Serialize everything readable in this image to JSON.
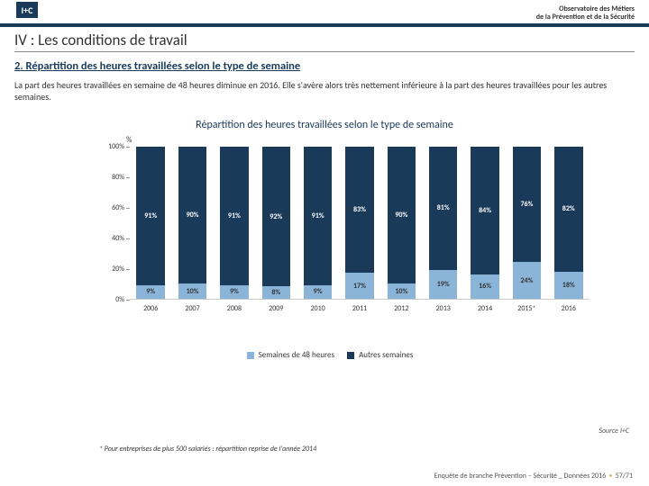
{
  "header": {
    "logo_text": "I+C",
    "obs_line1": "Observatoire des Métiers",
    "obs_line2": "de la Prévention et de la Sécurité"
  },
  "section": {
    "title": "IV : Les conditions de travail",
    "subtitle": "2. Répartition des heures travaillées selon le type de semaine",
    "desc": "La part des heures travaillées en semaine de 48 heures diminue en 2016. Elle s'avère alors très nettement inférieure à la part des heures travaillées pour les autres semaines."
  },
  "chart": {
    "type": "stacked-bar-100",
    "title": "Répartition des heures travaillées selon le type de semaine",
    "pct_symbol": "%",
    "y_ticks": [
      "0%",
      "20%",
      "40%",
      "60%",
      "80%",
      "100%"
    ],
    "ylim": [
      0,
      100
    ],
    "colors": {
      "bottom": "#8ab4d8",
      "top": "#1a3a5a",
      "grid": "#eeeeee",
      "bg": "#ffffff"
    },
    "bar_width_pct": 68,
    "categories": [
      "2006",
      "2007",
      "2008",
      "2009",
      "2010",
      "2011",
      "2012",
      "2013",
      "2014",
      "2015*",
      "2016"
    ],
    "series": {
      "bottom": {
        "name": "Semaines de 48 heures",
        "values": [
          9,
          10,
          9,
          8,
          9,
          17,
          10,
          19,
          16,
          24,
          18
        ]
      },
      "top": {
        "name": "Autres semaines",
        "values": [
          91,
          90,
          91,
          92,
          91,
          83,
          90,
          81,
          84,
          76,
          82
        ]
      }
    },
    "legend": {
      "item1": "Semaines de 48 heures",
      "item2": "Autres semaines"
    },
    "title_fontsize": 12,
    "label_fontsize": 8
  },
  "source": "Source I+C",
  "note": "* Pour entreprises de plus 500 salariés : répartition reprise de l'année 2014",
  "footer": {
    "text": "Enquête de branche Prévention – Sécurité _ Données 2016",
    "page": "57/71"
  }
}
